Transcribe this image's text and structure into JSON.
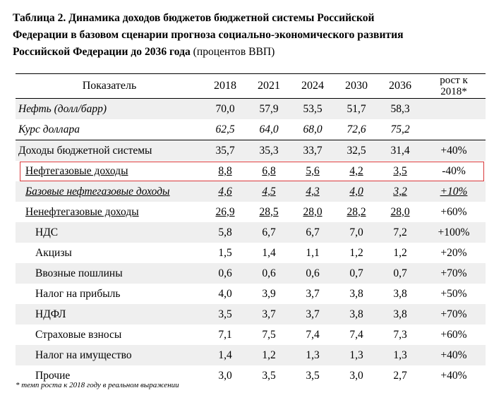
{
  "caption": {
    "bold_line1": "Таблица 2. Динамика доходов бюджетов бюджетной системы Российской",
    "bold_line2": "Федерации в базовом сценарии прогноза социально-экономического развития",
    "bold_line3": "Российской Федерации до 2036 года",
    "normal_suffix": " (процентов ВВП)"
  },
  "table": {
    "header": {
      "name": "Показатель",
      "years": [
        "2018",
        "2021",
        "2024",
        "2030",
        "2036"
      ],
      "growth_line1": "рост к",
      "growth_line2": "2018*"
    },
    "rows": [
      {
        "name": "Нефть (долл/барр)",
        "values": [
          "70,0",
          "57,9",
          "53,5",
          "51,7",
          "58,3"
        ],
        "growth": ""
      },
      {
        "name": "Курс доллара",
        "values": [
          "62,5",
          "64,0",
          "68,0",
          "72,6",
          "75,2"
        ],
        "growth": ""
      },
      {
        "name": "Доходы бюджетной системы",
        "values": [
          "35,7",
          "35,3",
          "33,7",
          "32,5",
          "31,4"
        ],
        "growth": "+40%"
      },
      {
        "name": "Нефтегазовые доходы",
        "values": [
          "8,8",
          "6,8",
          "5,6",
          "4,2",
          "3,5"
        ],
        "growth": "-40%"
      },
      {
        "name": "Базовые нефтегазовые доходы",
        "values": [
          "4,6",
          "4,5",
          "4,3",
          "4,0",
          "3,2"
        ],
        "growth": "+10%"
      },
      {
        "name": "Ненефтегазовые доходы",
        "values": [
          "26,9",
          "28,5",
          "28,0",
          "28,2",
          "28,0"
        ],
        "growth": "+60%"
      },
      {
        "name": "НДС",
        "values": [
          "5,8",
          "6,7",
          "6,7",
          "7,0",
          "7,2"
        ],
        "growth": "+100%"
      },
      {
        "name": "Акцизы",
        "values": [
          "1,5",
          "1,4",
          "1,1",
          "1,2",
          "1,2"
        ],
        "growth": "+20%"
      },
      {
        "name": "Ввозные пошлины",
        "values": [
          "0,6",
          "0,6",
          "0,6",
          "0,7",
          "0,7"
        ],
        "growth": "+70%"
      },
      {
        "name": "Налог на прибыль",
        "values": [
          "4,0",
          "3,9",
          "3,7",
          "3,8",
          "3,8"
        ],
        "growth": "+50%"
      },
      {
        "name": "НДФЛ",
        "values": [
          "3,5",
          "3,7",
          "3,7",
          "3,8",
          "3,8"
        ],
        "growth": "+70%"
      },
      {
        "name": "Страховые взносы",
        "values": [
          "7,1",
          "7,5",
          "7,4",
          "7,4",
          "7,3"
        ],
        "growth": "+60%"
      },
      {
        "name": "Налог на имущество",
        "values": [
          "1,4",
          "1,2",
          "1,3",
          "1,3",
          "1,3"
        ],
        "growth": "+40%"
      },
      {
        "name": "Прочие",
        "values": [
          "3,0",
          "3,5",
          "3,5",
          "3,0",
          "2,7"
        ],
        "growth": "+40%"
      }
    ]
  },
  "footnote": "* темп роста к 2018 году в реальном выражении",
  "colors": {
    "highlight_border": "#d9383a",
    "row_shade": "#efefef"
  }
}
